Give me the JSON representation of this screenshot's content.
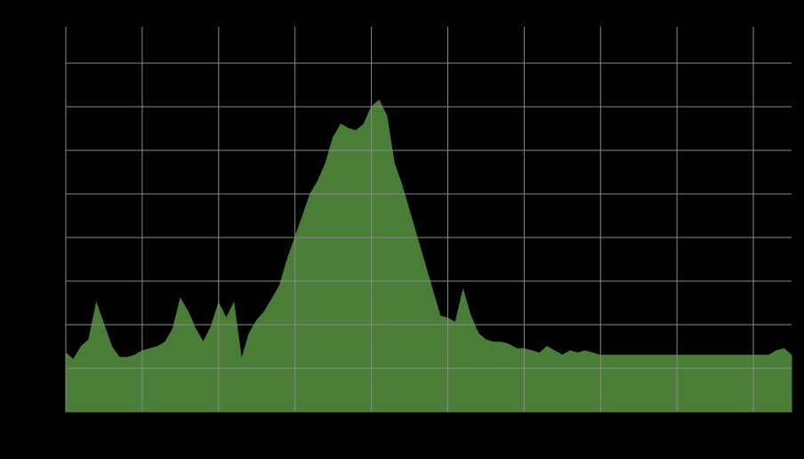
{
  "colors": {
    "background": "#000000",
    "area_fill": "#4a7d37",
    "grid": "#8a8a8a"
  },
  "chart_data": {
    "type": "area",
    "title": "",
    "xlabel": "",
    "ylabel": "",
    "grid": true,
    "legend": "none",
    "xlim": [
      0,
      95
    ],
    "ylim": [
      0,
      9
    ],
    "x": [
      0,
      1,
      2,
      3,
      4,
      5,
      6,
      7,
      8,
      9,
      10,
      11,
      12,
      13,
      14,
      15,
      16,
      17,
      18,
      19,
      20,
      21,
      22,
      23,
      24,
      25,
      26,
      27,
      28,
      29,
      30,
      31,
      32,
      33,
      34,
      35,
      36,
      37,
      38,
      39,
      40,
      41,
      42,
      43,
      44,
      45,
      46,
      47,
      48,
      49,
      50,
      51,
      52,
      53,
      54,
      55,
      56,
      57,
      58,
      59,
      60,
      61,
      62,
      63,
      64,
      65,
      66,
      67,
      68,
      69,
      70,
      71,
      72,
      73,
      74,
      75,
      76,
      77,
      78,
      79,
      80,
      81,
      82,
      83,
      84,
      85,
      86,
      87,
      88,
      89,
      90,
      91,
      92,
      93,
      94,
      95
    ],
    "values": [
      1.35,
      1.2,
      1.5,
      1.65,
      2.5,
      2.0,
      1.5,
      1.25,
      1.25,
      1.3,
      1.4,
      1.45,
      1.5,
      1.6,
      1.9,
      2.6,
      2.3,
      1.9,
      1.6,
      1.95,
      2.5,
      2.15,
      2.5,
      1.2,
      1.8,
      2.1,
      2.3,
      2.6,
      2.9,
      3.5,
      4.0,
      4.5,
      5.0,
      5.3,
      5.7,
      6.3,
      6.6,
      6.5,
      6.45,
      6.6,
      7.0,
      7.15,
      6.8,
      5.7,
      5.2,
      4.6,
      4.0,
      3.4,
      2.8,
      2.2,
      2.15,
      2.05,
      2.8,
      2.2,
      1.8,
      1.65,
      1.6,
      1.6,
      1.55,
      1.45,
      1.45,
      1.4,
      1.35,
      1.5,
      1.4,
      1.3,
      1.4,
      1.35,
      1.4,
      1.35,
      1.3,
      1.3,
      1.3,
      1.3,
      1.3,
      1.3,
      1.3,
      1.3,
      1.3,
      1.3,
      1.3,
      1.3,
      1.3,
      1.3,
      1.3,
      1.3,
      1.3,
      1.3,
      1.3,
      1.3,
      1.3,
      1.3,
      1.3,
      1.4,
      1.45,
      1.3
    ],
    "x_gridlines": [
      0,
      10,
      20,
      30,
      40,
      50,
      60,
      70,
      80,
      90
    ],
    "y_gridlines": [
      1,
      2,
      3,
      4,
      5,
      6,
      7,
      8
    ]
  }
}
